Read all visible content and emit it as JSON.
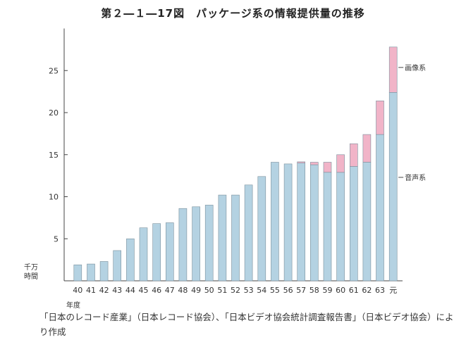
{
  "figure": {
    "title": "第２―１―17図　パッケージ系の情報提供量の推移",
    "source": "「日本のレコード産業」（日本レコード協会）、「日本ビデオ協会統計調査報告書」（日本ビデオ協会）により作成"
  },
  "chart_data": {
    "type": "bar",
    "stacked": true,
    "title": "第２―１―17図　パッケージ系の情報提供量の推移",
    "xlabel": "年度",
    "ylabel": "千万時間",
    "ylim": [
      0,
      30
    ],
    "yticks": [
      5,
      10,
      15,
      20,
      25
    ],
    "grid": false,
    "categories": [
      "40",
      "41",
      "42",
      "43",
      "44",
      "45",
      "46",
      "47",
      "48",
      "49",
      "50",
      "51",
      "52",
      "53",
      "54",
      "55",
      "56",
      "57",
      "58",
      "59",
      "60",
      "61",
      "62",
      "63",
      "元"
    ],
    "series": [
      {
        "name": "音声系",
        "color": "#b4d2e2",
        "values": [
          1.9,
          2.0,
          2.3,
          3.6,
          5.0,
          6.3,
          6.8,
          6.9,
          8.6,
          8.8,
          9.0,
          10.2,
          10.2,
          11.4,
          12.4,
          14.1,
          13.9,
          14.0,
          13.8,
          12.9,
          12.9,
          13.6,
          14.1,
          17.4,
          22.4
        ]
      },
      {
        "name": "画像系",
        "color": "#f1b4c8",
        "values": [
          0,
          0,
          0,
          0,
          0,
          0,
          0,
          0,
          0,
          0,
          0,
          0,
          0,
          0,
          0,
          0,
          0,
          0.15,
          0.3,
          1.2,
          2.1,
          2.7,
          3.3,
          4.0,
          5.4
        ]
      }
    ],
    "legend": "inline-right"
  },
  "colors": {
    "axis": "#444444",
    "bar_outline": "#7a8f9c"
  }
}
